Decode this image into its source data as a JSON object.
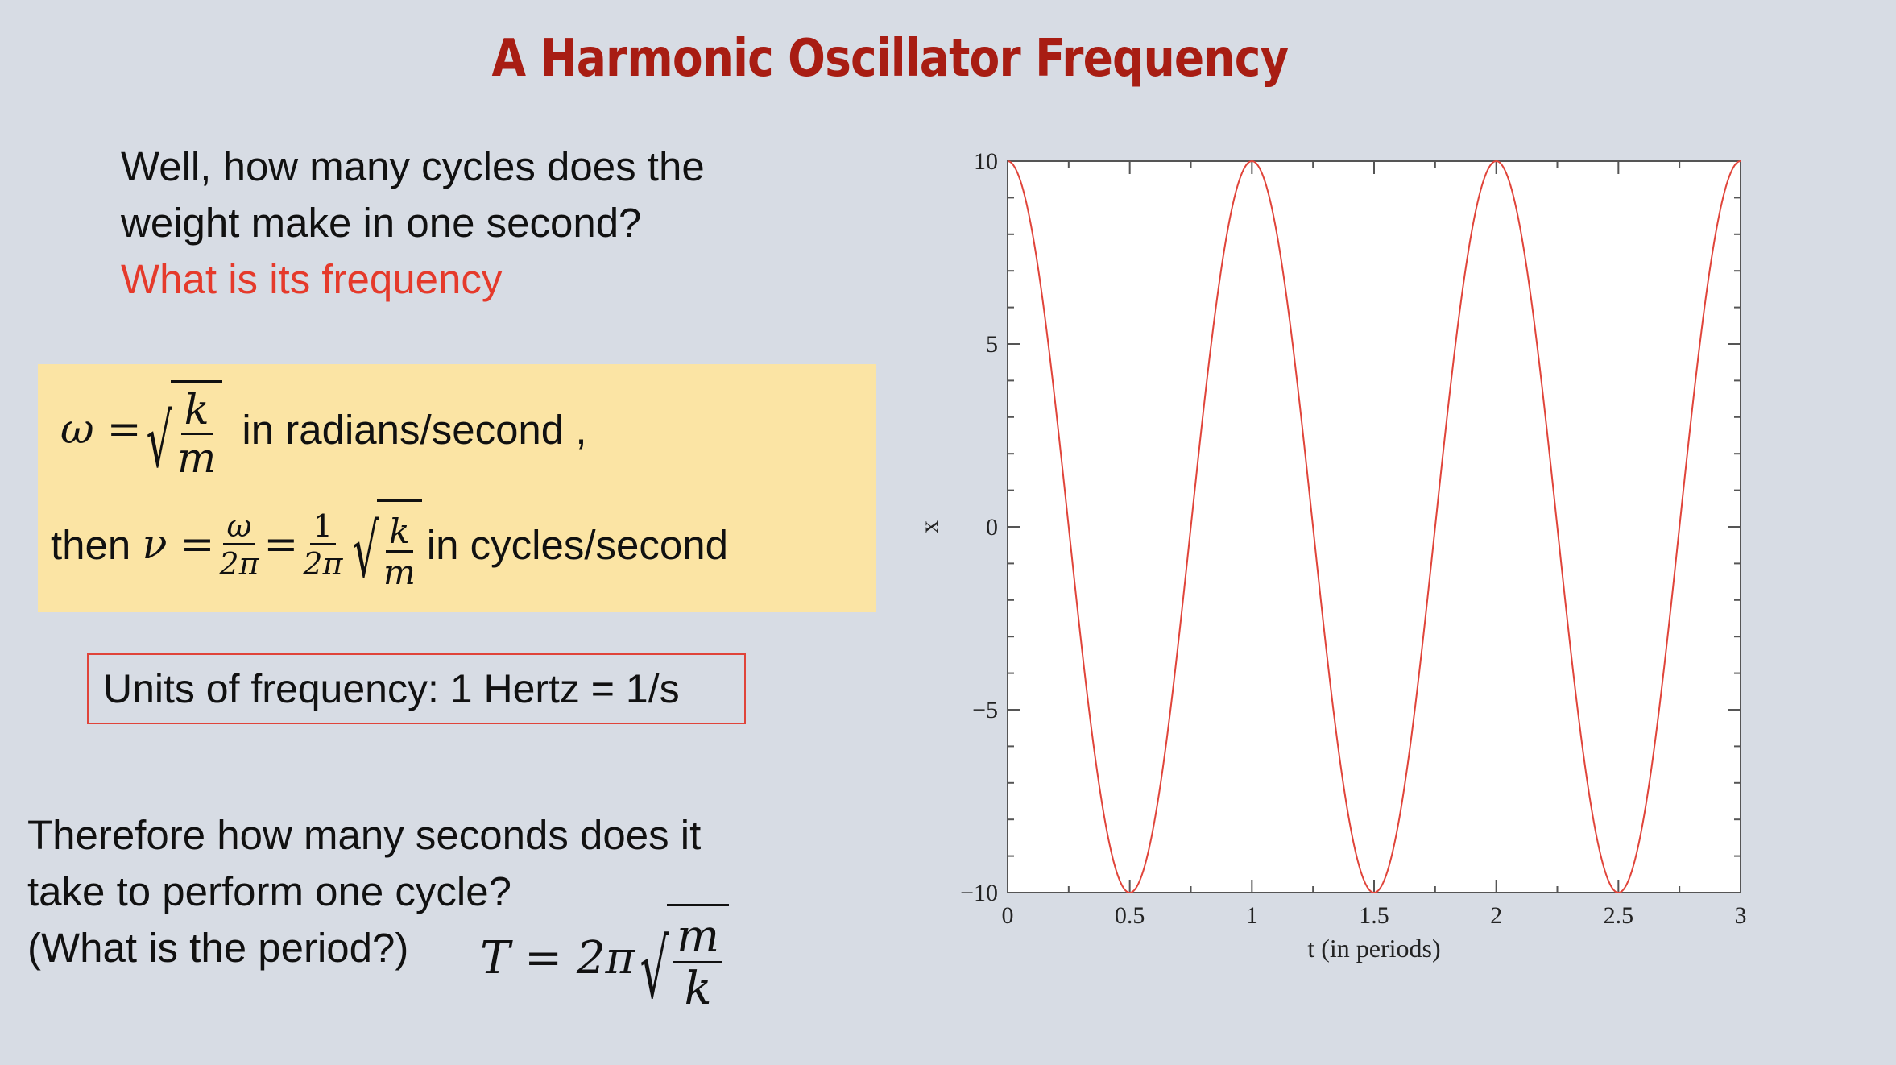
{
  "slide": {
    "title": "A Harmonic Oscillator Frequency",
    "intro_line1": "Well, how many cycles does the",
    "intro_line2": "weight make in one second?",
    "intro_highlight": "What is its frequency",
    "formula1": {
      "lhs": "ω =",
      "num": "k",
      "den": "m",
      "suffix": "in radians/second ,"
    },
    "formula2": {
      "prefix": "then",
      "nu": "ν =",
      "frac1_num": "ω",
      "frac1_den": "2π",
      "eq": "=",
      "frac2_num": "1",
      "frac2_den": "2π",
      "sqrt_num": "k",
      "sqrt_den": "m",
      "suffix": "in cycles/second"
    },
    "units_text": "Units of frequency: 1 Hertz = 1/s",
    "outro_line1": "Therefore how many seconds does it",
    "outro_line2": "take to perform one cycle?",
    "outro_line3": "(What is the period?)",
    "period_formula": {
      "lhs": "T = 2π",
      "num": "m",
      "den": "k"
    }
  },
  "chart_data": {
    "type": "line",
    "title": "",
    "xlabel": "t (in periods)",
    "ylabel": "x",
    "xlim": [
      0,
      3
    ],
    "ylim": [
      -10,
      10
    ],
    "xticks": [
      0,
      0.5,
      1,
      1.5,
      2,
      2.5,
      3
    ],
    "xtick_labels": [
      "0",
      "0.5",
      "1",
      "1.5",
      "2",
      "2.5",
      "3"
    ],
    "yticks": [
      -10,
      -5,
      0,
      5,
      10
    ],
    "ytick_labels": [
      "−10",
      "−5",
      "0",
      "5",
      "10"
    ],
    "grid": false,
    "series": [
      {
        "function": "x = 10 cos(2π t)",
        "amplitude": 10,
        "period": 1,
        "color": "#e0443a"
      }
    ]
  }
}
